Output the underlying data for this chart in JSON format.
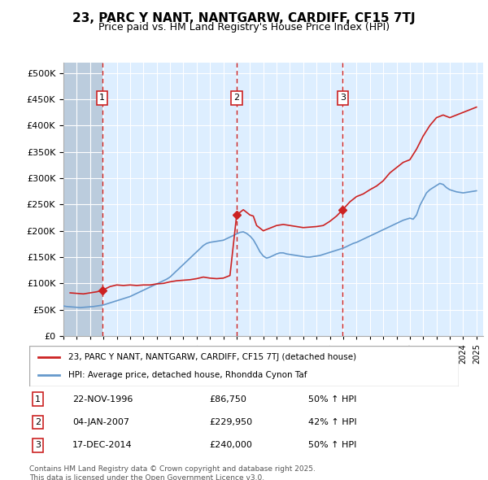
{
  "title": "23, PARC Y NANT, NANTGARW, CARDIFF, CF15 7TJ",
  "subtitle": "Price paid vs. HM Land Registry's House Price Index (HPI)",
  "legend_line1": "23, PARC Y NANT, NANTGARW, CARDIFF, CF15 7TJ (detached house)",
  "legend_line2": "HPI: Average price, detached house, Rhondda Cynon Taf",
  "footer": "Contains HM Land Registry data © Crown copyright and database right 2025.\nThis data is licensed under the Open Government Licence v3.0.",
  "purchases": [
    {
      "label": "1",
      "date_num": 1996.9,
      "price": 86750,
      "date_str": "22-NOV-1996",
      "pct": "50% ↑ HPI"
    },
    {
      "label": "2",
      "date_num": 2007.0,
      "price": 229950,
      "date_str": "04-JAN-2007",
      "pct": "42% ↑ HPI"
    },
    {
      "label": "3",
      "date_num": 2014.96,
      "price": 240000,
      "date_str": "17-DEC-2014",
      "pct": "50% ↑ HPI"
    }
  ],
  "hpi_line_color": "#6699cc",
  "price_line_color": "#cc2222",
  "background_color": "#ddeeff",
  "hatch_color": "#bbccdd",
  "grid_color": "#ffffff",
  "ylim": [
    0,
    520000
  ],
  "xlim": [
    1994,
    2025.5
  ],
  "yticks": [
    0,
    50000,
    100000,
    150000,
    200000,
    250000,
    300000,
    350000,
    400000,
    450000,
    500000
  ],
  "ytick_labels": [
    "£0",
    "£50K",
    "£100K",
    "£150K",
    "£200K",
    "£250K",
    "£300K",
    "£350K",
    "£400K",
    "£450K",
    "£500K"
  ],
  "hpi_data": {
    "years": [
      1994.0,
      1994.25,
      1994.5,
      1994.75,
      1995.0,
      1995.25,
      1995.5,
      1995.75,
      1996.0,
      1996.25,
      1996.5,
      1996.75,
      1997.0,
      1997.25,
      1997.5,
      1997.75,
      1998.0,
      1998.25,
      1998.5,
      1998.75,
      1999.0,
      1999.25,
      1999.5,
      1999.75,
      2000.0,
      2000.25,
      2000.5,
      2000.75,
      2001.0,
      2001.25,
      2001.5,
      2001.75,
      2002.0,
      2002.25,
      2002.5,
      2002.75,
      2003.0,
      2003.25,
      2003.5,
      2003.75,
      2004.0,
      2004.25,
      2004.5,
      2004.75,
      2005.0,
      2005.25,
      2005.5,
      2005.75,
      2006.0,
      2006.25,
      2006.5,
      2006.75,
      2007.0,
      2007.25,
      2007.5,
      2007.75,
      2008.0,
      2008.25,
      2008.5,
      2008.75,
      2009.0,
      2009.25,
      2009.5,
      2009.75,
      2010.0,
      2010.25,
      2010.5,
      2010.75,
      2011.0,
      2011.25,
      2011.5,
      2011.75,
      2012.0,
      2012.25,
      2012.5,
      2012.75,
      2013.0,
      2013.25,
      2013.5,
      2013.75,
      2014.0,
      2014.25,
      2014.5,
      2014.75,
      2015.0,
      2015.25,
      2015.5,
      2015.75,
      2016.0,
      2016.25,
      2016.5,
      2016.75,
      2017.0,
      2017.25,
      2017.5,
      2017.75,
      2018.0,
      2018.25,
      2018.5,
      2018.75,
      2019.0,
      2019.25,
      2019.5,
      2019.75,
      2020.0,
      2020.25,
      2020.5,
      2020.75,
      2021.0,
      2021.25,
      2021.5,
      2021.75,
      2022.0,
      2022.25,
      2022.5,
      2022.75,
      2023.0,
      2023.25,
      2023.5,
      2023.75,
      2024.0,
      2024.25,
      2024.5,
      2024.75,
      2025.0
    ],
    "values": [
      57000,
      56000,
      55500,
      55000,
      54500,
      54000,
      54500,
      55000,
      55500,
      56000,
      57000,
      58000,
      59000,
      61000,
      63000,
      65000,
      67000,
      69000,
      71000,
      73000,
      75000,
      78000,
      81000,
      84000,
      87000,
      90000,
      93000,
      96000,
      99000,
      102000,
      105000,
      108000,
      112000,
      118000,
      124000,
      130000,
      136000,
      142000,
      148000,
      154000,
      160000,
      166000,
      172000,
      176000,
      178000,
      179000,
      180000,
      181000,
      182000,
      185000,
      188000,
      191000,
      194000,
      197000,
      198000,
      195000,
      190000,
      183000,
      172000,
      160000,
      152000,
      148000,
      150000,
      153000,
      156000,
      158000,
      158000,
      156000,
      155000,
      154000,
      153000,
      152000,
      151000,
      150000,
      150000,
      151000,
      152000,
      153000,
      155000,
      157000,
      159000,
      161000,
      163000,
      165000,
      167000,
      170000,
      173000,
      176000,
      178000,
      181000,
      184000,
      187000,
      190000,
      193000,
      196000,
      199000,
      202000,
      205000,
      208000,
      211000,
      214000,
      217000,
      220000,
      222000,
      224000,
      222000,
      230000,
      248000,
      260000,
      272000,
      278000,
      282000,
      286000,
      290000,
      288000,
      282000,
      278000,
      276000,
      274000,
      273000,
      272000,
      273000,
      274000,
      275000,
      276000
    ]
  },
  "price_data": {
    "years": [
      1994.5,
      1995.0,
      1995.5,
      1996.0,
      1996.5,
      1996.9,
      1997.5,
      1998.0,
      1998.5,
      1999.0,
      1999.5,
      2000.0,
      2000.5,
      2001.0,
      2001.5,
      2002.0,
      2002.5,
      2003.0,
      2003.5,
      2004.0,
      2004.5,
      2005.0,
      2005.5,
      2006.0,
      2006.5,
      2007.0,
      2007.5,
      2007.75,
      2008.0,
      2008.25,
      2008.5,
      2009.0,
      2009.5,
      2010.0,
      2010.5,
      2011.0,
      2011.5,
      2012.0,
      2012.5,
      2013.0,
      2013.5,
      2014.0,
      2014.5,
      2014.96,
      2015.5,
      2016.0,
      2016.5,
      2017.0,
      2017.5,
      2018.0,
      2018.5,
      2019.0,
      2019.5,
      2020.0,
      2020.5,
      2021.0,
      2021.5,
      2022.0,
      2022.5,
      2023.0,
      2023.5,
      2024.0,
      2024.5,
      2025.0
    ],
    "values": [
      82000,
      81000,
      80000,
      82000,
      84000,
      86750,
      94000,
      97000,
      96000,
      97000,
      96000,
      97000,
      97000,
      99000,
      100000,
      103000,
      105000,
      106000,
      107000,
      109000,
      112000,
      110000,
      109000,
      110000,
      115000,
      229950,
      240000,
      235000,
      230000,
      228000,
      210000,
      200000,
      205000,
      210000,
      212000,
      210000,
      208000,
      206000,
      207000,
      208000,
      210000,
      218000,
      228000,
      240000,
      255000,
      265000,
      270000,
      278000,
      285000,
      295000,
      310000,
      320000,
      330000,
      335000,
      355000,
      380000,
      400000,
      415000,
      420000,
      415000,
      420000,
      425000,
      430000,
      435000
    ]
  }
}
